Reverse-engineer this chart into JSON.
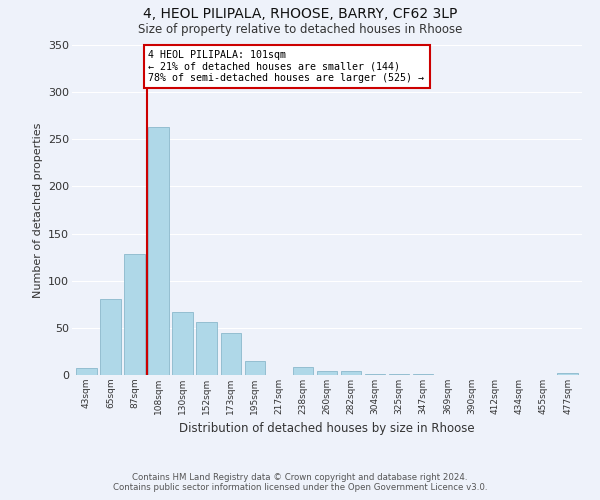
{
  "title1": "4, HEOL PILIPALA, RHOOSE, BARRY, CF62 3LP",
  "title2": "Size of property relative to detached houses in Rhoose",
  "xlabel": "Distribution of detached houses by size in Rhoose",
  "ylabel": "Number of detached properties",
  "bin_labels": [
    "43sqm",
    "65sqm",
    "87sqm",
    "108sqm",
    "130sqm",
    "152sqm",
    "173sqm",
    "195sqm",
    "217sqm",
    "238sqm",
    "260sqm",
    "282sqm",
    "304sqm",
    "325sqm",
    "347sqm",
    "369sqm",
    "390sqm",
    "412sqm",
    "434sqm",
    "455sqm",
    "477sqm"
  ],
  "bar_heights": [
    7,
    81,
    128,
    263,
    67,
    56,
    45,
    15,
    0,
    8,
    4,
    4,
    1,
    1,
    1,
    0,
    0,
    0,
    0,
    0,
    2
  ],
  "bar_color": "#afd8e8",
  "bar_edge_color": "#8ab8cc",
  "background_color": "#eef2fa",
  "grid_color": "#ffffff",
  "vline_color": "#cc0000",
  "annotation_line1": "4 HEOL PILIPALA: 101sqm",
  "annotation_line2": "← 21% of detached houses are smaller (144)",
  "annotation_line3": "78% of semi-detached houses are larger (525) →",
  "annotation_box_color": "#cc0000",
  "ylim": [
    0,
    350
  ],
  "yticks": [
    0,
    50,
    100,
    150,
    200,
    250,
    300,
    350
  ],
  "footnote1": "Contains HM Land Registry data © Crown copyright and database right 2024.",
  "footnote2": "Contains public sector information licensed under the Open Government Licence v3.0."
}
